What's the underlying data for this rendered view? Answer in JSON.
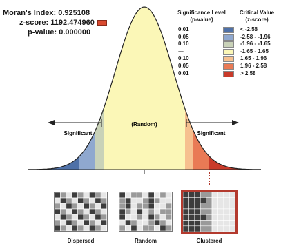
{
  "stats": {
    "moran_label": "Moran's Index:",
    "moran_value": "0.925108",
    "z_label": "z-score:",
    "z_value": "1192.474960",
    "p_label": "p-value:",
    "p_value": "0.000000"
  },
  "legend": {
    "sig_header_1": "Significance Level",
    "sig_header_2": "(p-value)",
    "cv_header_1": "Critical Value",
    "cv_header_2": "(z-score)",
    "rows": [
      {
        "p": "0.01",
        "z": "< -2.58",
        "color": "#4f71a8"
      },
      {
        "p": "0.05",
        "z": "-2.58 - -1.96",
        "color": "#8fa8cf"
      },
      {
        "p": "0.10",
        "z": "-1.96 - -1.65",
        "color": "#c9d2b8"
      },
      {
        "p": "---",
        "z": "-1.65 - 1.65",
        "color": "#fbf7b7"
      },
      {
        "p": "0.10",
        "z": "1.65 - 1.96",
        "color": "#f6c08f"
      },
      {
        "p": "0.05",
        "z": "1.96 - 2.58",
        "color": "#e97a55"
      },
      {
        "p": "0.01",
        "z": "> 2.58",
        "color": "#c93a2a"
      }
    ]
  },
  "curve": {
    "random_label": "(Random)",
    "left_label": "Significant",
    "right_label": "Significant"
  },
  "patterns": {
    "dispersed": "Dispersed",
    "random": "Random",
    "clustered": "Clustered"
  },
  "colors": {
    "accent": "#c93a2a",
    "map_dark": "#3d3d3d",
    "map_mid": "#9a9a9a",
    "map_light": "#e6e6e6"
  }
}
